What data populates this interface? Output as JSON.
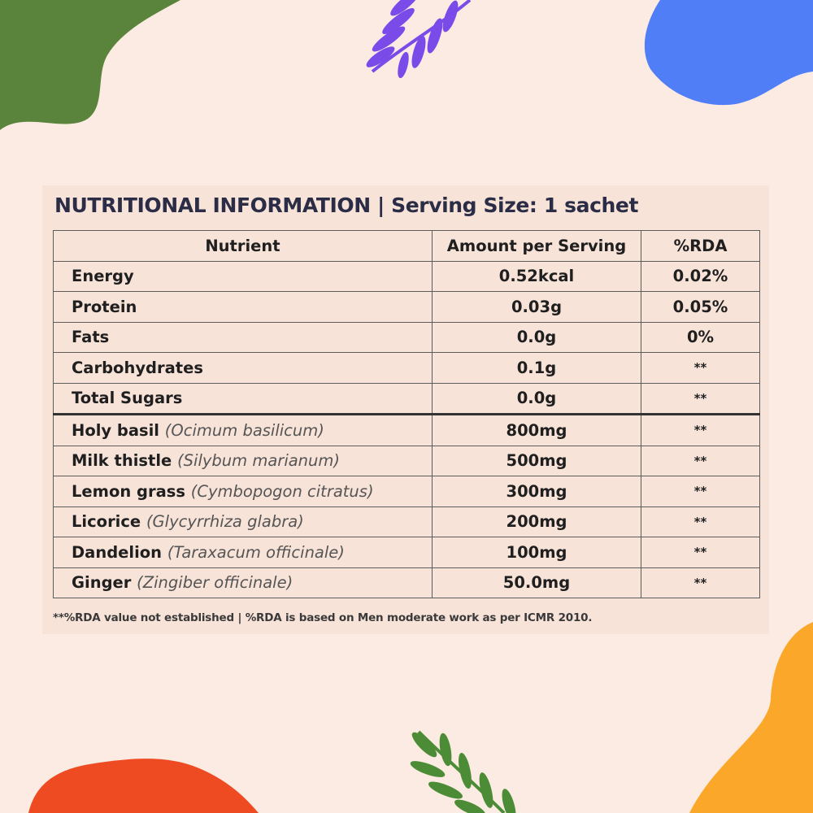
{
  "page": {
    "background": "#fbebe2",
    "decorations": [
      "green-blob",
      "purple-leaf",
      "blue-blob",
      "yellow-blob",
      "red-blob",
      "green-leaf"
    ]
  },
  "title": "NUTRITIONAL INFORMATION | Serving Size: 1 sachet",
  "table": {
    "headers": {
      "nutrient": "Nutrient",
      "amount": "Amount per Serving",
      "rda": "%RDA"
    },
    "rows": [
      {
        "name": "Energy",
        "latin": "",
        "amount": "0.52kcal",
        "rda": "0.02%"
      },
      {
        "name": "Protein",
        "latin": "",
        "amount": "0.03g",
        "rda": "0.05%"
      },
      {
        "name": "Fats",
        "latin": "",
        "amount": "0.0g",
        "rda": "0%"
      },
      {
        "name": "Carbohydrates",
        "latin": "",
        "amount": "0.1g",
        "rda": "**"
      },
      {
        "name": "Total Sugars",
        "latin": "",
        "amount": "0.0g",
        "rda": "**"
      },
      {
        "name": "Holy basil",
        "latin": "(Ocimum basilicum)",
        "amount": "800mg",
        "rda": "**"
      },
      {
        "name": "Milk thistle",
        "latin": "(Silybum marianum)",
        "amount": "500mg",
        "rda": "**"
      },
      {
        "name": "Lemon grass",
        "latin": "(Cymbopogon citratus)",
        "amount": "300mg",
        "rda": "**"
      },
      {
        "name": "Licorice",
        "latin": "(Glycyrrhiza glabra)",
        "amount": "200mg",
        "rda": "**"
      },
      {
        "name": "Dandelion",
        "latin": "(Taraxacum officinale)",
        "amount": "100mg",
        "rda": "**"
      },
      {
        "name": "Ginger",
        "latin": "(Zingiber officinale)",
        "amount": "50.0mg",
        "rda": "**"
      }
    ]
  },
  "footnote": "**%RDA value not established |  %RDA is based on Men moderate work as per ICMR 2010."
}
